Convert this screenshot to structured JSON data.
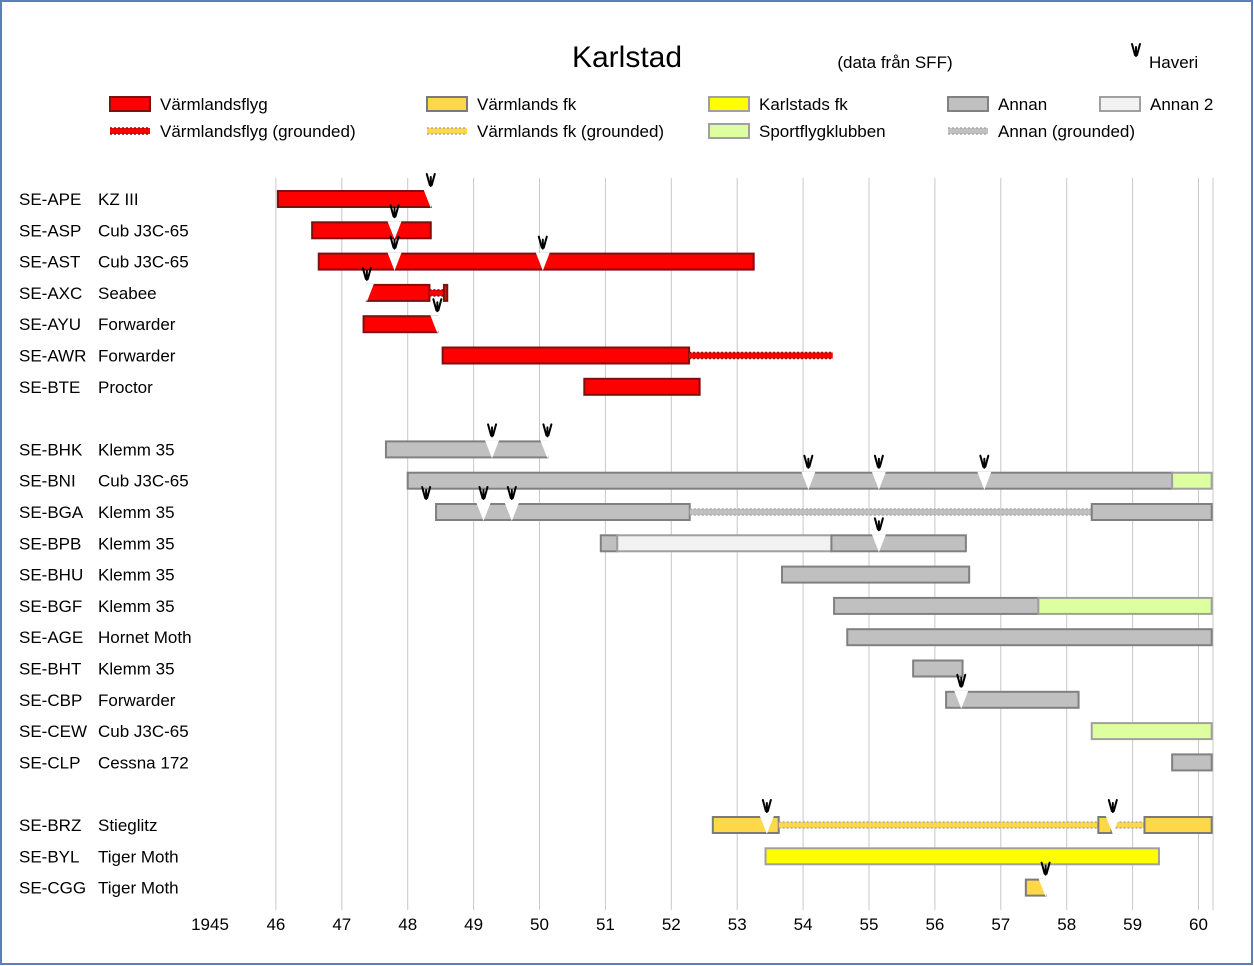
{
  "chart_data": {
    "type": "gantt",
    "title": "Karlstad",
    "subtitle": "(data från SFF)",
    "crash_marker_label": "Haveri",
    "legend_placement": "top",
    "grid": true,
    "xlim": [
      1945,
      1960
    ],
    "x_ticks": [
      "1945",
      "46",
      "47",
      "48",
      "49",
      "50",
      "51",
      "52",
      "53",
      "54",
      "55",
      "56",
      "57",
      "58",
      "59",
      "60"
    ],
    "categories": {
      "vf": {
        "label": "Värmlandsflyg",
        "fill": "#ff0000",
        "stroke": "#7f1010"
      },
      "vfg": {
        "label": "Värmlandsflyg (grounded)",
        "fill": "#ff0000",
        "stroke": "#8b1111",
        "dashed": true
      },
      "vfk": {
        "label": "Värmlands fk",
        "fill": "#ffd84a",
        "stroke": "#7a7a7a"
      },
      "vfkg": {
        "label": "Värmlands fk (grounded)",
        "fill": "#ffd84a",
        "stroke": "#a8a8a8",
        "dashed": true
      },
      "kfk": {
        "label": "Karlstads fk",
        "fill": "#ffff00",
        "stroke": "#a0a0a0"
      },
      "sfk": {
        "label": "Sportflygklubben",
        "fill": "#ddff9f",
        "stroke": "#a0a0a0"
      },
      "an": {
        "label": "Annan",
        "fill": "#c0c0c0",
        "stroke": "#808080"
      },
      "ang": {
        "label": "Annan (grounded)",
        "fill": "#c0c0c0",
        "stroke": "#a8a8a8",
        "dashed": true
      },
      "an2": {
        "label": "Annan 2",
        "fill": "#f2f2f2",
        "stroke": "#a0a0a0"
      }
    },
    "legend_order": [
      "vf",
      "vfg",
      "vfk",
      "vfkg",
      "kfk",
      "sfk",
      "an",
      "ang",
      "an2"
    ],
    "rows": [
      {
        "reg": "SE-APE",
        "type": "KZ III",
        "slot": 0,
        "bars": [
          {
            "cat": "vf",
            "start": 1946.03,
            "end": 1948.35
          }
        ],
        "crashes": [
          1948.35
        ]
      },
      {
        "reg": "SE-ASP",
        "type": "Cub J3C-65",
        "slot": 1,
        "bars": [
          {
            "cat": "vf",
            "start": 1946.55,
            "end": 1948.35
          }
        ],
        "crashes": [
          1947.8
        ]
      },
      {
        "reg": "SE-AST",
        "type": "Cub J3C-65",
        "slot": 2,
        "bars": [
          {
            "cat": "vf",
            "start": 1946.65,
            "end": 1953.25
          }
        ],
        "crashes": [
          1947.8,
          1950.05
        ]
      },
      {
        "reg": "SE-AXC",
        "type": "Seabee",
        "slot": 3,
        "bars": [
          {
            "cat": "vf",
            "start": 1947.38,
            "end": 1948.33
          },
          {
            "cat": "vfg",
            "start": 1948.33,
            "end": 1948.55
          },
          {
            "cat": "vf",
            "start": 1948.55,
            "end": 1948.6
          }
        ],
        "crashes": [
          1947.38
        ]
      },
      {
        "reg": "SE-AYU",
        "type": "Forwarder",
        "slot": 4,
        "bars": [
          {
            "cat": "vf",
            "start": 1947.33,
            "end": 1948.45
          }
        ],
        "crashes": [
          1948.45
        ]
      },
      {
        "reg": "SE-AWR",
        "type": "Forwarder",
        "slot": 5,
        "bars": [
          {
            "cat": "vf",
            "start": 1948.53,
            "end": 1952.27
          },
          {
            "cat": "vfg",
            "start": 1952.27,
            "end": 1954.45
          }
        ],
        "crashes": []
      },
      {
        "reg": "SE-BTE",
        "type": "Proctor",
        "slot": 6,
        "bars": [
          {
            "cat": "vf",
            "start": 1950.68,
            "end": 1952.43
          }
        ],
        "crashes": []
      },
      {
        "reg": "SE-BHK",
        "type": "Klemm 35",
        "slot": 8,
        "bars": [
          {
            "cat": "an",
            "start": 1947.67,
            "end": 1950.12
          }
        ],
        "crashes": [
          1949.28,
          1950.12
        ]
      },
      {
        "reg": "SE-BNI",
        "type": "Cub J3C-65",
        "slot": 9,
        "bars": [
          {
            "cat": "an",
            "start": 1948.0,
            "end": 1959.6
          },
          {
            "cat": "sfk",
            "start": 1959.6,
            "end": 1960.2
          }
        ],
        "crashes": [
          1954.08,
          1955.15,
          1956.75
        ]
      },
      {
        "reg": "SE-BGA",
        "type": "Klemm 35",
        "slot": 10,
        "bars": [
          {
            "cat": "an",
            "start": 1948.43,
            "end": 1952.28
          },
          {
            "cat": "ang",
            "start": 1952.28,
            "end": 1958.38
          },
          {
            "cat": "an",
            "start": 1958.38,
            "end": 1960.2
          }
        ],
        "crashes": [
          1948.28,
          1949.15,
          1949.58
        ]
      },
      {
        "reg": "SE-BPB",
        "type": "Klemm 35",
        "slot": 11,
        "bars": [
          {
            "cat": "an",
            "start": 1950.93,
            "end": 1951.18
          },
          {
            "cat": "an2",
            "start": 1951.18,
            "end": 1954.43
          },
          {
            "cat": "an",
            "start": 1954.43,
            "end": 1956.47
          }
        ],
        "crashes": [
          1955.15
        ]
      },
      {
        "reg": "SE-BHU",
        "type": "Klemm 35",
        "slot": 12,
        "bars": [
          {
            "cat": "an",
            "start": 1953.68,
            "end": 1956.52
          }
        ],
        "crashes": []
      },
      {
        "reg": "SE-BGF",
        "type": "Klemm 35",
        "slot": 13,
        "bars": [
          {
            "cat": "an",
            "start": 1954.47,
            "end": 1957.57
          },
          {
            "cat": "sfk",
            "start": 1957.57,
            "end": 1960.2
          }
        ],
        "crashes": []
      },
      {
        "reg": "SE-AGE",
        "type": "Hornet Moth",
        "slot": 14,
        "bars": [
          {
            "cat": "an",
            "start": 1954.67,
            "end": 1960.2
          }
        ],
        "crashes": []
      },
      {
        "reg": "SE-BHT",
        "type": "Klemm 35",
        "slot": 15,
        "bars": [
          {
            "cat": "an",
            "start": 1955.67,
            "end": 1956.42
          }
        ],
        "crashes": []
      },
      {
        "reg": "SE-CBP",
        "type": "Forwarder",
        "slot": 16,
        "bars": [
          {
            "cat": "an",
            "start": 1956.17,
            "end": 1958.18
          }
        ],
        "crashes": [
          1956.4
        ]
      },
      {
        "reg": "SE-CEW",
        "type": "Cub J3C-65",
        "slot": 17,
        "bars": [
          {
            "cat": "sfk",
            "start": 1958.38,
            "end": 1960.2
          }
        ],
        "crashes": []
      },
      {
        "reg": "SE-CLP",
        "type": "Cessna 172",
        "slot": 18,
        "bars": [
          {
            "cat": "an",
            "start": 1959.6,
            "end": 1960.2
          }
        ],
        "crashes": []
      },
      {
        "reg": "SE-BRZ",
        "type": "Stieglitz",
        "slot": 20,
        "bars": [
          {
            "cat": "vfk",
            "start": 1952.63,
            "end": 1953.63
          },
          {
            "cat": "vfkg",
            "start": 1953.63,
            "end": 1958.48
          },
          {
            "cat": "vfk",
            "start": 1958.48,
            "end": 1958.68
          },
          {
            "cat": "vfkg",
            "start": 1958.68,
            "end": 1959.18
          },
          {
            "cat": "vfk",
            "start": 1959.18,
            "end": 1960.2
          }
        ],
        "crashes": [
          1953.45,
          1958.7
        ]
      },
      {
        "reg": "SE-BYL",
        "type": "Tiger Moth",
        "slot": 21,
        "bars": [
          {
            "cat": "kfk",
            "start": 1953.43,
            "end": 1959.4
          }
        ],
        "crashes": []
      },
      {
        "reg": "SE-CGG",
        "type": "Tiger Moth",
        "slot": 22,
        "bars": [
          {
            "cat": "vfk",
            "start": 1957.38,
            "end": 1957.68
          }
        ],
        "crashes": [
          1957.68
        ]
      }
    ]
  }
}
